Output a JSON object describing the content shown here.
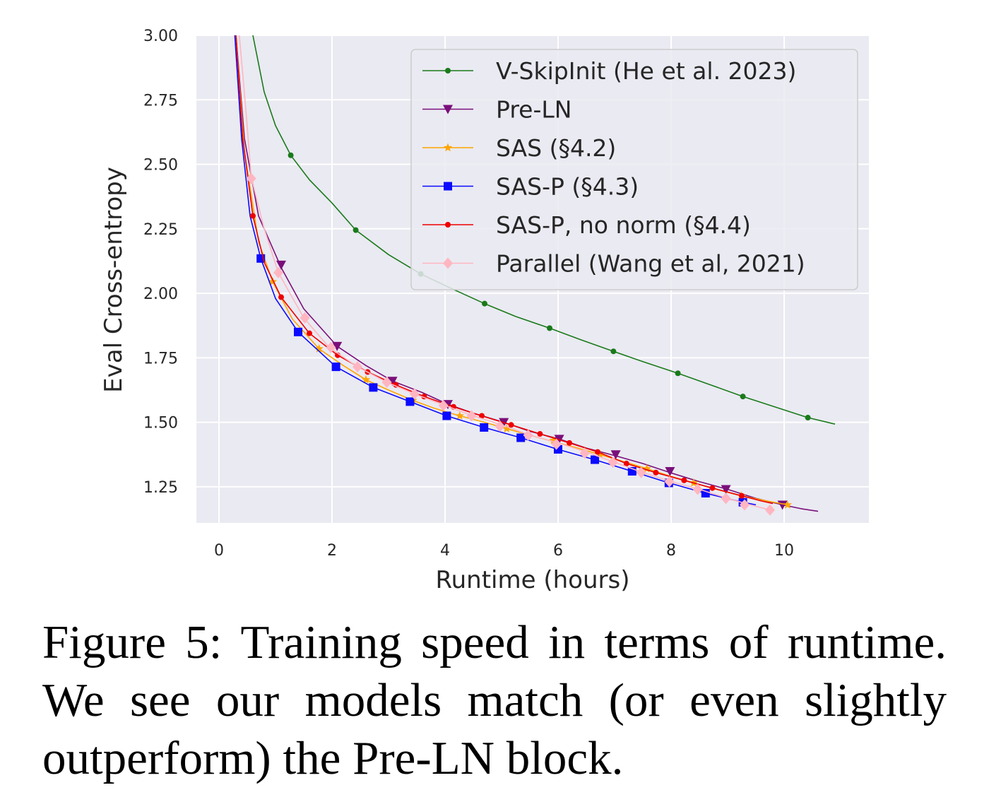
{
  "figure": {
    "caption_label": "Figure 5:",
    "caption_text": "Training speed in terms of runtime. We see our models match (or even slightly outperform) the Pre-LN block."
  },
  "chart_data": {
    "type": "line",
    "title": "",
    "xlabel": "Runtime (hours)",
    "ylabel": "Eval Cross-entropy",
    "xlim": [
      -0.4,
      11.5
    ],
    "ylim": [
      1.11,
      3.0
    ],
    "xticks": [
      0,
      2,
      4,
      6,
      8,
      10
    ],
    "yticks": [
      1.25,
      1.5,
      1.75,
      2.0,
      2.25,
      2.5,
      2.75,
      3.0
    ],
    "ytick_labels": [
      "1.25",
      "1.50",
      "1.75",
      "2.00",
      "2.25",
      "2.50",
      "2.75",
      "3.00"
    ],
    "xtick_labels": [
      "0",
      "2",
      "4",
      "6",
      "8",
      "10"
    ],
    "grid": true,
    "legend_position": "top-right",
    "series": [
      {
        "name": "V-SkipInit (He et al. 2023)",
        "color": "#1a7a1a",
        "marker": "dot",
        "line": [
          [
            0.6,
            3.0
          ],
          [
            0.8,
            2.78
          ],
          [
            1.0,
            2.65
          ],
          [
            1.27,
            2.535
          ],
          [
            1.6,
            2.44
          ],
          [
            2.0,
            2.35
          ],
          [
            2.42,
            2.245
          ],
          [
            3.0,
            2.15
          ],
          [
            3.57,
            2.075
          ],
          [
            4.1,
            2.02
          ],
          [
            4.7,
            1.96
          ],
          [
            5.25,
            1.91
          ],
          [
            5.85,
            1.865
          ],
          [
            6.4,
            1.82
          ],
          [
            6.98,
            1.775
          ],
          [
            7.5,
            1.735
          ],
          [
            8.12,
            1.69
          ],
          [
            8.7,
            1.645
          ],
          [
            9.27,
            1.6
          ],
          [
            9.9,
            1.555
          ],
          [
            10.42,
            1.518
          ],
          [
            10.9,
            1.493
          ]
        ],
        "markers": [
          [
            1.27,
            2.535
          ],
          [
            2.42,
            2.245
          ],
          [
            3.57,
            2.075
          ],
          [
            4.7,
            1.96
          ],
          [
            5.85,
            1.865
          ],
          [
            6.98,
            1.775
          ],
          [
            8.12,
            1.69
          ],
          [
            9.27,
            1.6
          ],
          [
            10.42,
            1.518
          ]
        ]
      },
      {
        "name": "Pre-LN",
        "color": "#7a0f7a",
        "marker": "triangle-down",
        "line": [
          [
            0.3,
            3.0
          ],
          [
            0.45,
            2.6
          ],
          [
            0.7,
            2.3
          ],
          [
            1.1,
            2.1
          ],
          [
            1.5,
            1.94
          ],
          [
            2.09,
            1.795
          ],
          [
            2.6,
            1.72
          ],
          [
            3.07,
            1.66
          ],
          [
            3.6,
            1.615
          ],
          [
            4.05,
            1.57
          ],
          [
            4.5,
            1.535
          ],
          [
            5.04,
            1.5
          ],
          [
            5.5,
            1.465
          ],
          [
            6.02,
            1.435
          ],
          [
            6.5,
            1.4
          ],
          [
            7.02,
            1.37
          ],
          [
            7.5,
            1.34
          ],
          [
            7.98,
            1.305
          ],
          [
            8.5,
            1.27
          ],
          [
            9.0,
            1.24
          ],
          [
            9.5,
            1.205
          ],
          [
            9.97,
            1.18
          ],
          [
            10.3,
            1.165
          ],
          [
            10.6,
            1.155
          ]
        ],
        "markers": [
          [
            1.1,
            2.11
          ],
          [
            2.09,
            1.795
          ],
          [
            3.07,
            1.66
          ],
          [
            4.05,
            1.57
          ],
          [
            5.04,
            1.5
          ],
          [
            6.02,
            1.435
          ],
          [
            7.02,
            1.375
          ],
          [
            7.98,
            1.31
          ],
          [
            8.97,
            1.24
          ],
          [
            9.97,
            1.18
          ]
        ]
      },
      {
        "name": "SAS (§4.2)",
        "color": "#ffa500",
        "marker": "star",
        "line": [
          [
            0.3,
            3.0
          ],
          [
            0.45,
            2.55
          ],
          [
            0.7,
            2.2
          ],
          [
            0.95,
            2.045
          ],
          [
            1.3,
            1.9
          ],
          [
            1.77,
            1.785
          ],
          [
            2.2,
            1.72
          ],
          [
            2.6,
            1.665
          ],
          [
            3.0,
            1.625
          ],
          [
            3.43,
            1.585
          ],
          [
            3.8,
            1.555
          ],
          [
            4.26,
            1.525
          ],
          [
            4.7,
            1.5
          ],
          [
            5.09,
            1.475
          ],
          [
            5.5,
            1.45
          ],
          [
            5.92,
            1.425
          ],
          [
            6.35,
            1.4
          ],
          [
            6.74,
            1.375
          ],
          [
            7.2,
            1.345
          ],
          [
            7.57,
            1.32
          ],
          [
            8.0,
            1.29
          ],
          [
            8.4,
            1.265
          ],
          [
            8.8,
            1.24
          ],
          [
            9.24,
            1.215
          ],
          [
            9.7,
            1.195
          ],
          [
            10.06,
            1.18
          ]
        ],
        "markers": [
          [
            0.95,
            2.045
          ],
          [
            1.77,
            1.785
          ],
          [
            2.6,
            1.665
          ],
          [
            3.43,
            1.585
          ],
          [
            4.26,
            1.525
          ],
          [
            5.09,
            1.475
          ],
          [
            5.92,
            1.43
          ],
          [
            6.74,
            1.375
          ],
          [
            7.57,
            1.32
          ],
          [
            8.4,
            1.265
          ],
          [
            9.24,
            1.215
          ],
          [
            10.06,
            1.18
          ]
        ]
      },
      {
        "name": "SAS-P (§4.3)",
        "color": "#0b0bff",
        "marker": "square",
        "line": [
          [
            0.28,
            3.0
          ],
          [
            0.4,
            2.6
          ],
          [
            0.55,
            2.3
          ],
          [
            0.74,
            2.135
          ],
          [
            1.0,
            1.98
          ],
          [
            1.4,
            1.85
          ],
          [
            2.07,
            1.715
          ],
          [
            2.73,
            1.635
          ],
          [
            3.38,
            1.58
          ],
          [
            4.03,
            1.525
          ],
          [
            4.69,
            1.48
          ],
          [
            5.34,
            1.44
          ],
          [
            6.0,
            1.395
          ],
          [
            6.65,
            1.355
          ],
          [
            7.31,
            1.31
          ],
          [
            7.96,
            1.265
          ],
          [
            8.61,
            1.225
          ],
          [
            9.27,
            1.19
          ],
          [
            9.5,
            1.18
          ]
        ],
        "markers": [
          [
            0.74,
            2.135
          ],
          [
            1.4,
            1.85
          ],
          [
            2.07,
            1.715
          ],
          [
            2.73,
            1.635
          ],
          [
            3.38,
            1.58
          ],
          [
            4.03,
            1.525
          ],
          [
            4.69,
            1.48
          ],
          [
            5.34,
            1.44
          ],
          [
            6.0,
            1.395
          ],
          [
            6.65,
            1.355
          ],
          [
            7.31,
            1.31
          ],
          [
            7.96,
            1.265
          ],
          [
            8.61,
            1.225
          ],
          [
            9.27,
            1.19
          ]
        ]
      },
      {
        "name": "SAS-P, no norm (§4.4)",
        "color": "#ee0000",
        "marker": "dot",
        "line": [
          [
            0.3,
            3.0
          ],
          [
            0.42,
            2.6
          ],
          [
            0.6,
            2.3
          ],
          [
            0.8,
            2.12
          ],
          [
            1.1,
            1.985
          ],
          [
            1.6,
            1.845
          ],
          [
            2.1,
            1.76
          ],
          [
            2.63,
            1.695
          ],
          [
            3.13,
            1.645
          ],
          [
            3.63,
            1.6
          ],
          [
            4.15,
            1.56
          ],
          [
            4.65,
            1.525
          ],
          [
            5.17,
            1.49
          ],
          [
            5.68,
            1.455
          ],
          [
            6.2,
            1.42
          ],
          [
            6.7,
            1.385
          ],
          [
            7.21,
            1.34
          ],
          [
            7.73,
            1.305
          ],
          [
            8.23,
            1.275
          ],
          [
            8.73,
            1.245
          ],
          [
            9.25,
            1.215
          ],
          [
            9.6,
            1.195
          ],
          [
            9.8,
            1.185
          ]
        ],
        "markers": [
          [
            0.6,
            2.3
          ],
          [
            1.1,
            1.985
          ],
          [
            1.6,
            1.845
          ],
          [
            2.1,
            1.76
          ],
          [
            2.63,
            1.695
          ],
          [
            3.13,
            1.645
          ],
          [
            3.63,
            1.6
          ],
          [
            4.15,
            1.56
          ],
          [
            4.65,
            1.525
          ],
          [
            5.17,
            1.49
          ],
          [
            5.68,
            1.455
          ],
          [
            6.2,
            1.42
          ],
          [
            6.7,
            1.385
          ],
          [
            7.21,
            1.34
          ],
          [
            7.73,
            1.305
          ],
          [
            8.23,
            1.275
          ],
          [
            8.73,
            1.245
          ],
          [
            9.25,
            1.215
          ]
        ]
      },
      {
        "name": "Parallel (Wang et al, 2021)",
        "color": "#ffb6c1",
        "marker": "diamond",
        "line": [
          [
            0.36,
            3.0
          ],
          [
            0.48,
            2.7
          ],
          [
            0.57,
            2.45
          ],
          [
            0.8,
            2.25
          ],
          [
            1.05,
            2.08
          ],
          [
            1.5,
            1.905
          ],
          [
            1.95,
            1.79
          ],
          [
            2.45,
            1.715
          ],
          [
            2.97,
            1.655
          ],
          [
            3.46,
            1.61
          ],
          [
            4.0,
            1.565
          ],
          [
            4.5,
            1.525
          ],
          [
            5.0,
            1.49
          ],
          [
            5.5,
            1.45
          ],
          [
            6.0,
            1.42
          ],
          [
            6.5,
            1.385
          ],
          [
            7.0,
            1.345
          ],
          [
            7.5,
            1.305
          ],
          [
            8.0,
            1.27
          ],
          [
            8.5,
            1.24
          ],
          [
            9.0,
            1.205
          ],
          [
            9.4,
            1.18
          ],
          [
            9.75,
            1.16
          ]
        ],
        "markers": [
          [
            0.57,
            2.445
          ],
          [
            1.05,
            2.08
          ],
          [
            1.52,
            1.905
          ],
          [
            1.98,
            1.79
          ],
          [
            2.45,
            1.715
          ],
          [
            2.97,
            1.655
          ],
          [
            3.46,
            1.61
          ],
          [
            3.97,
            1.565
          ],
          [
            4.47,
            1.525
          ],
          [
            4.97,
            1.485
          ],
          [
            5.47,
            1.45
          ],
          [
            5.97,
            1.415
          ],
          [
            6.47,
            1.38
          ],
          [
            6.97,
            1.345
          ],
          [
            7.47,
            1.305
          ],
          [
            7.97,
            1.27
          ],
          [
            8.47,
            1.24
          ],
          [
            8.97,
            1.205
          ],
          [
            9.3,
            1.18
          ],
          [
            9.75,
            1.16
          ]
        ]
      }
    ]
  }
}
